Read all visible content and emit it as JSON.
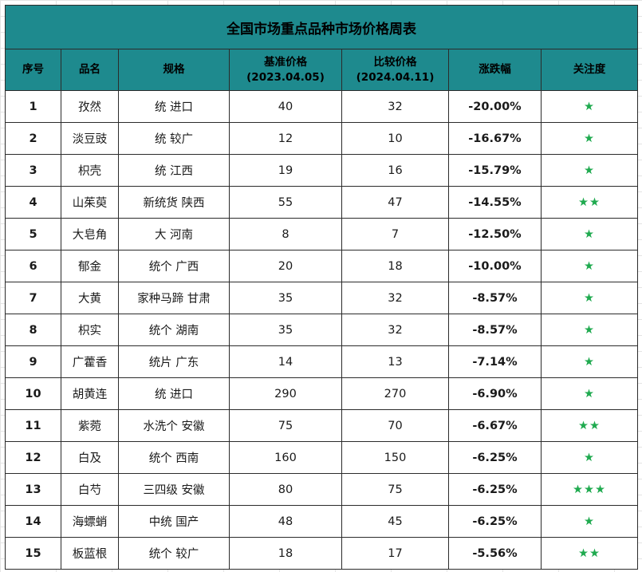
{
  "title": "全国市场重点品种市场价格周表",
  "headers": {
    "idx": "序号",
    "name": "品名",
    "spec": "规格",
    "base_line1": "基准价格",
    "base_line2": "(2023.04.05)",
    "cmp_line1": "比较价格",
    "cmp_line2": "(2024.04.11)",
    "change": "涨跌幅",
    "attention": "关注度"
  },
  "star_color": "#1faa4f",
  "header_color": "#1e8a8e",
  "rows": [
    {
      "idx": "1",
      "name": "孜然",
      "spec": "统 进口",
      "base": "40",
      "cmp": "32",
      "change": "-20.00%",
      "stars": 1
    },
    {
      "idx": "2",
      "name": "淡豆豉",
      "spec": "统 较广",
      "base": "12",
      "cmp": "10",
      "change": "-16.67%",
      "stars": 1
    },
    {
      "idx": "3",
      "name": "枳壳",
      "spec": "统 江西",
      "base": "19",
      "cmp": "16",
      "change": "-15.79%",
      "stars": 1
    },
    {
      "idx": "4",
      "name": "山茱萸",
      "spec": "新统货 陕西",
      "base": "55",
      "cmp": "47",
      "change": "-14.55%",
      "stars": 2
    },
    {
      "idx": "5",
      "name": "大皂角",
      "spec": "大 河南",
      "base": "8",
      "cmp": "7",
      "change": "-12.50%",
      "stars": 1
    },
    {
      "idx": "6",
      "name": "郁金",
      "spec": "统个 广西",
      "base": "20",
      "cmp": "18",
      "change": "-10.00%",
      "stars": 1
    },
    {
      "idx": "7",
      "name": "大黄",
      "spec": "家种马蹄 甘肃",
      "base": "35",
      "cmp": "32",
      "change": "-8.57%",
      "stars": 1
    },
    {
      "idx": "8",
      "name": "枳实",
      "spec": "统个 湖南",
      "base": "35",
      "cmp": "32",
      "change": "-8.57%",
      "stars": 1
    },
    {
      "idx": "9",
      "name": "广藿香",
      "spec": "统片 广东",
      "base": "14",
      "cmp": "13",
      "change": "-7.14%",
      "stars": 1
    },
    {
      "idx": "10",
      "name": "胡黄连",
      "spec": "统 进口",
      "base": "290",
      "cmp": "270",
      "change": "-6.90%",
      "stars": 1
    },
    {
      "idx": "11",
      "name": "紫菀",
      "spec": "水洗个 安徽",
      "base": "75",
      "cmp": "70",
      "change": "-6.67%",
      "stars": 2
    },
    {
      "idx": "12",
      "name": "白及",
      "spec": "统个 西南",
      "base": "160",
      "cmp": "150",
      "change": "-6.25%",
      "stars": 1
    },
    {
      "idx": "13",
      "name": "白芍",
      "spec": "三四级 安徽",
      "base": "80",
      "cmp": "75",
      "change": "-6.25%",
      "stars": 3
    },
    {
      "idx": "14",
      "name": "海螵蛸",
      "spec": "中统 国产",
      "base": "48",
      "cmp": "45",
      "change": "-6.25%",
      "stars": 1
    },
    {
      "idx": "15",
      "name": "板蓝根",
      "spec": "统个 较广",
      "base": "18",
      "cmp": "17",
      "change": "-5.56%",
      "stars": 2
    }
  ]
}
